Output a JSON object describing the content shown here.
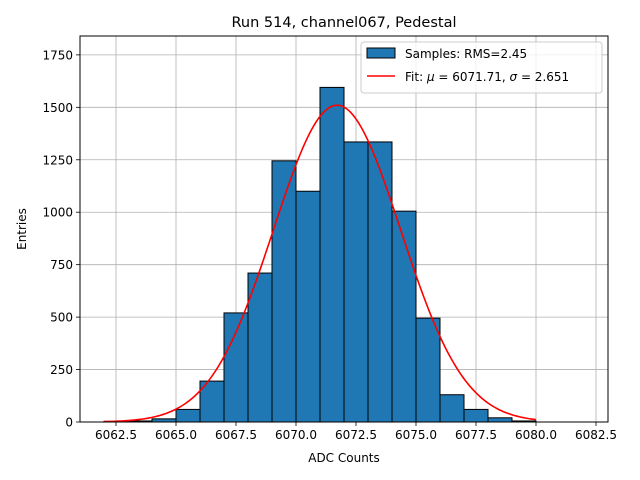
{
  "chart_data": {
    "type": "bar",
    "title": "Run 514, channel067, Pedestal",
    "xlabel": "ADC Counts",
    "ylabel": "Entries",
    "xlim": [
      6061.0,
      6083.0
    ],
    "ylim": [
      0,
      1840
    ],
    "x_ticks": [
      6062.5,
      6065.0,
      6067.5,
      6070.0,
      6072.5,
      6075.0,
      6077.5,
      6080.0,
      6082.5
    ],
    "x_tick_labels": [
      "6062.5",
      "6065.0",
      "6067.5",
      "6070.0",
      "6072.5",
      "6075.0",
      "6077.5",
      "6080.0",
      "6082.5"
    ],
    "y_ticks": [
      0,
      250,
      500,
      750,
      1000,
      1250,
      1500,
      1750
    ],
    "y_tick_labels": [
      "0",
      "250",
      "500",
      "750",
      "1000",
      "1250",
      "1500",
      "1750"
    ],
    "grid": true,
    "legend_position": "top-right",
    "histogram": {
      "name": "Samples: RMS=2.45",
      "color": "#1f77b4",
      "edge_color": "#000000",
      "bin_edges": [
        6062.0,
        6063.0,
        6064.0,
        6065.0,
        6066.0,
        6067.0,
        6068.0,
        6069.0,
        6070.0,
        6071.0,
        6072.0,
        6073.0,
        6074.0,
        6075.0,
        6076.0,
        6077.0,
        6078.0,
        6079.0,
        6080.0
      ],
      "counts": [
        3,
        5,
        15,
        60,
        195,
        520,
        710,
        1245,
        1100,
        1595,
        1335,
        1335,
        1005,
        495,
        130,
        60,
        20,
        5
      ]
    },
    "fit": {
      "name": "Fit: μ = 6071.71, σ = 2.651",
      "label_parts": [
        "Fit: ",
        "μ",
        " = 6071.71, ",
        "σ",
        " = 2.651"
      ],
      "color": "#ff0000",
      "mu": 6071.71,
      "sigma": 2.651,
      "amplitude": 1510,
      "x_range": [
        6062.0,
        6080.0
      ]
    }
  }
}
